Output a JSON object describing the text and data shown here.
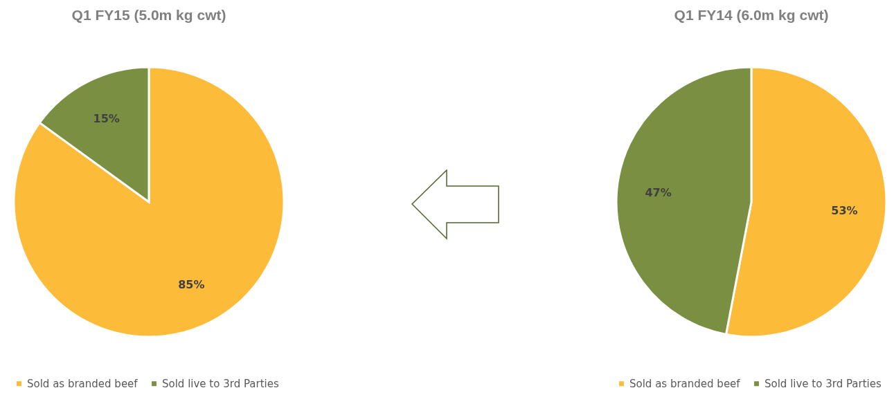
{
  "chart_data": [
    {
      "type": "pie",
      "title": "Q1 FY15 (5.0m kg cwt)",
      "categories": [
        "Sold as branded beef",
        "Sold live to 3rd Parties"
      ],
      "values": [
        85,
        15
      ],
      "colors": [
        "#fdbb3a",
        "#7a8f42"
      ],
      "value_labels": [
        "85%",
        "15%"
      ],
      "legend": "bottom"
    },
    {
      "type": "pie",
      "title": "Q1 FY14 (6.0m kg cwt)",
      "categories": [
        "Sold as branded beef",
        "Sold live to 3rd Parties"
      ],
      "values": [
        53,
        47
      ],
      "colors": [
        "#fdbb3a",
        "#7a8f42"
      ],
      "value_labels": [
        "53%",
        "47%"
      ],
      "legend": "bottom"
    }
  ]
}
